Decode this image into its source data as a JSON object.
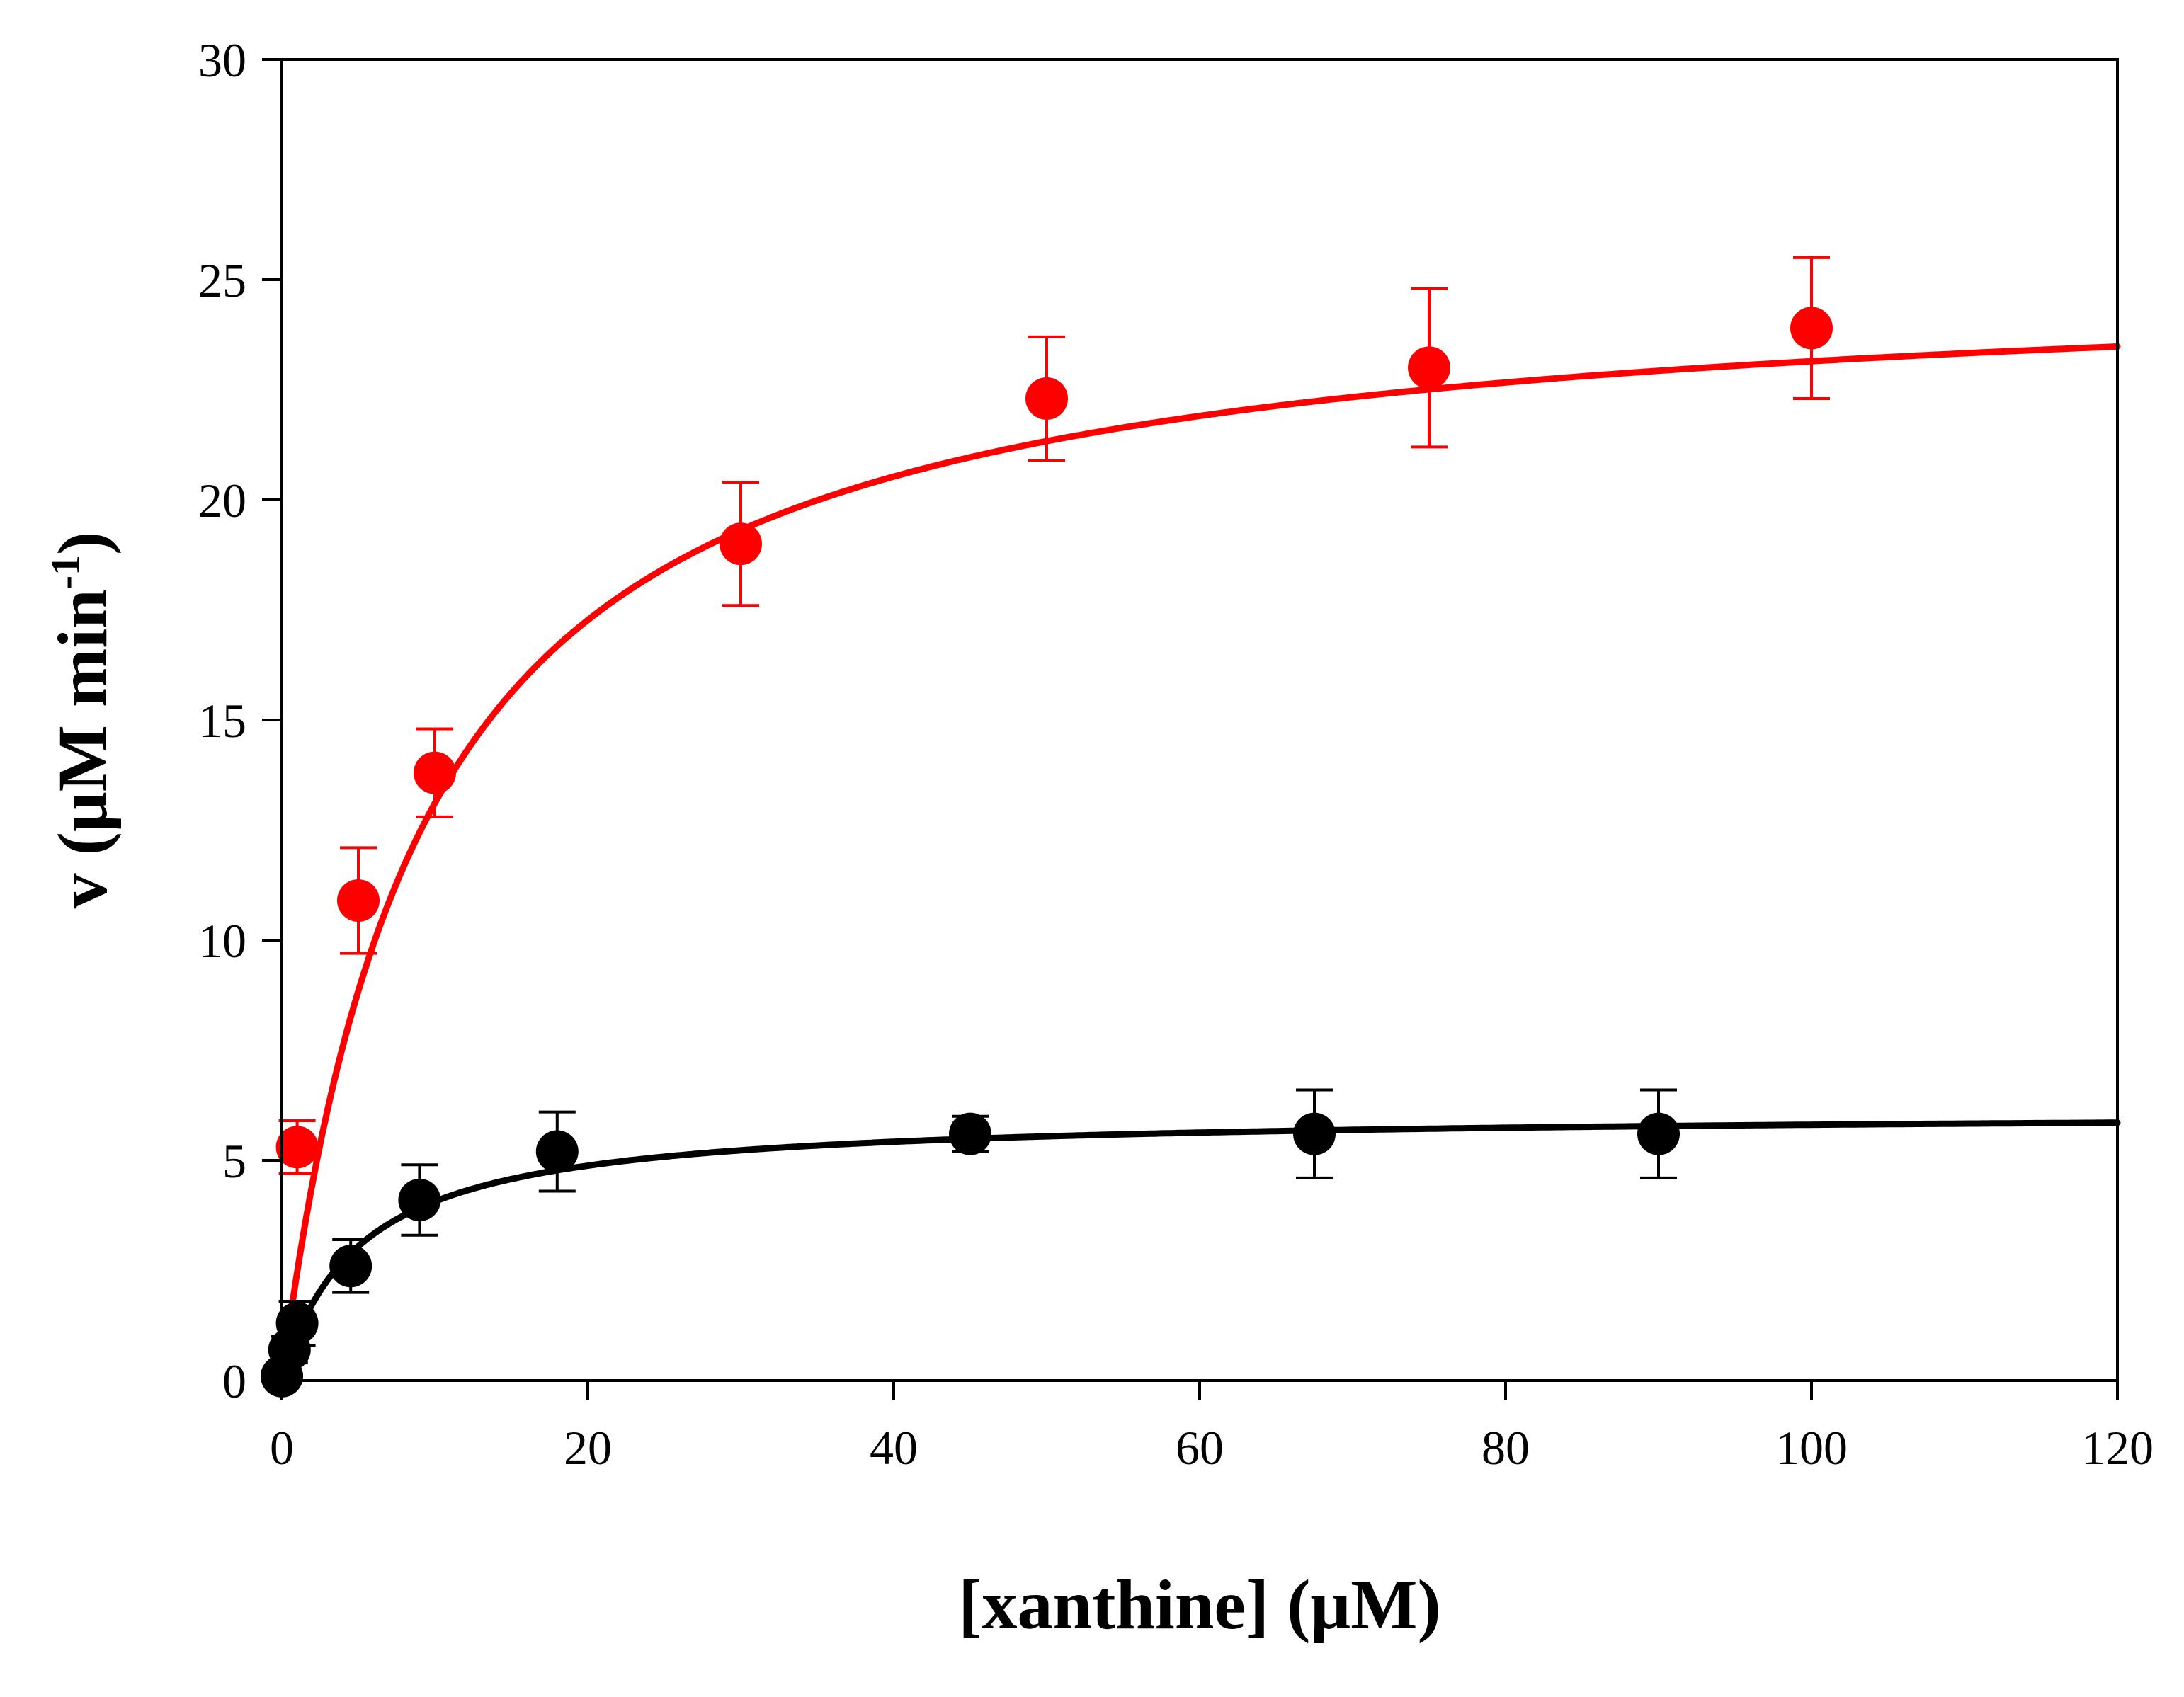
{
  "chart_data": {
    "type": "scatter",
    "xlabel": "[xanthine] (μM)",
    "ylabel": {
      "text": "v (μM min",
      "superscript": "-1",
      "close": ")"
    },
    "xlim": [
      0,
      120
    ],
    "ylim": [
      0,
      30
    ],
    "xticks": [
      0,
      20,
      40,
      60,
      80,
      100,
      120
    ],
    "yticks": [
      0,
      5,
      10,
      15,
      20,
      25,
      30
    ],
    "xtick_labels": [
      "0",
      "20",
      "40",
      "60",
      "80",
      "100",
      "120"
    ],
    "ytick_labels": [
      "0",
      "5",
      "10",
      "15",
      "20",
      "25",
      "30"
    ],
    "grid": false,
    "series": [
      {
        "name": "red",
        "color": "#ff0000",
        "x": [
          0,
          1,
          5,
          10,
          30,
          50,
          75,
          100
        ],
        "y": [
          0.1,
          5.3,
          10.9,
          13.8,
          19.0,
          22.3,
          23.0,
          23.9
        ],
        "error": [
          0,
          0.6,
          1.2,
          1.0,
          1.4,
          1.4,
          1.8,
          1.6
        ],
        "fit": {
          "model": "michaelis-menten",
          "vmax": 25.3,
          "km": 9.3
        }
      },
      {
        "name": "black",
        "color": "#000000",
        "x": [
          0,
          0.5,
          1,
          4.5,
          9,
          18,
          45,
          67.5,
          90
        ],
        "y": [
          0.1,
          0.7,
          1.3,
          2.6,
          4.1,
          5.2,
          5.6,
          5.6,
          5.6
        ],
        "error": [
          0,
          0.3,
          0.5,
          0.6,
          0.8,
          0.9,
          0.4,
          1.0,
          1.0
        ],
        "fit": {
          "model": "michaelis-menten",
          "vmax": 6.1,
          "km": 5.0
        }
      }
    ]
  }
}
